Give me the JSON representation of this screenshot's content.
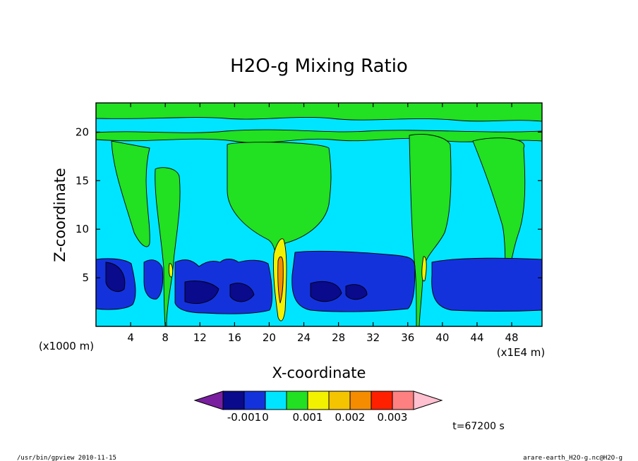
{
  "window": {
    "app": "gpview"
  },
  "chart_data": {
    "type": "contour",
    "title": "H2O-g Mixing Ratio",
    "xlabel": "X-coordinate",
    "ylabel": "Z-coordinate",
    "x_unit_left": "(x1000 m)",
    "x_unit_right": "(x1E4 m)",
    "xlim": [
      0,
      51.5
    ],
    "ylim": [
      0,
      23
    ],
    "xticks": [
      4,
      8,
      12,
      16,
      20,
      24,
      28,
      32,
      36,
      40,
      44,
      48
    ],
    "yticks": [
      5,
      10,
      15,
      20
    ],
    "colorbar": {
      "levels": [
        "-0.001",
        "0",
        "0.001",
        "0.002",
        "0.003"
      ],
      "colors": [
        "#7a1fa0",
        "#0a0a8c",
        "#1432dc",
        "#00e5ff",
        "#22e022",
        "#f2f200",
        "#f5c400",
        "#f58c00",
        "#ff2000",
        "#ff8080",
        "#ffc0d0"
      ]
    },
    "regions": [
      {
        "band": "upper layer z 20-23",
        "value": "0 to 0.001",
        "color": "green"
      },
      {
        "band": "dry slab z 19.5-21.5",
        "value": "-0.0005 to 0",
        "color": "cyan"
      },
      {
        "band": "mid troposphere z 7-19",
        "value": "-0.0005 to 0",
        "color": "cyan"
      },
      {
        "band": "plumes x 1-7, 7.5-9.5, 15-27, 36-40, 43.5-49",
        "value": "0 to 0.001",
        "color": "green"
      },
      {
        "band": "low layer z 1.5-7",
        "value": "-0.001 to -0.0005",
        "color": "blue"
      },
      {
        "band": "cores z 2-4",
        "value": "< -0.001",
        "color": "dark blue"
      },
      {
        "band": "convection x 20-21.5",
        "value": "0.001 to 0.003",
        "color": "yellow/orange"
      }
    ]
  },
  "annotations": {
    "time": "t=67200 s",
    "footer_left": "/usr/bin/gpview   2010-11-15",
    "footer_right": "arare-earth_H2O-g.nc@H2O-g"
  }
}
